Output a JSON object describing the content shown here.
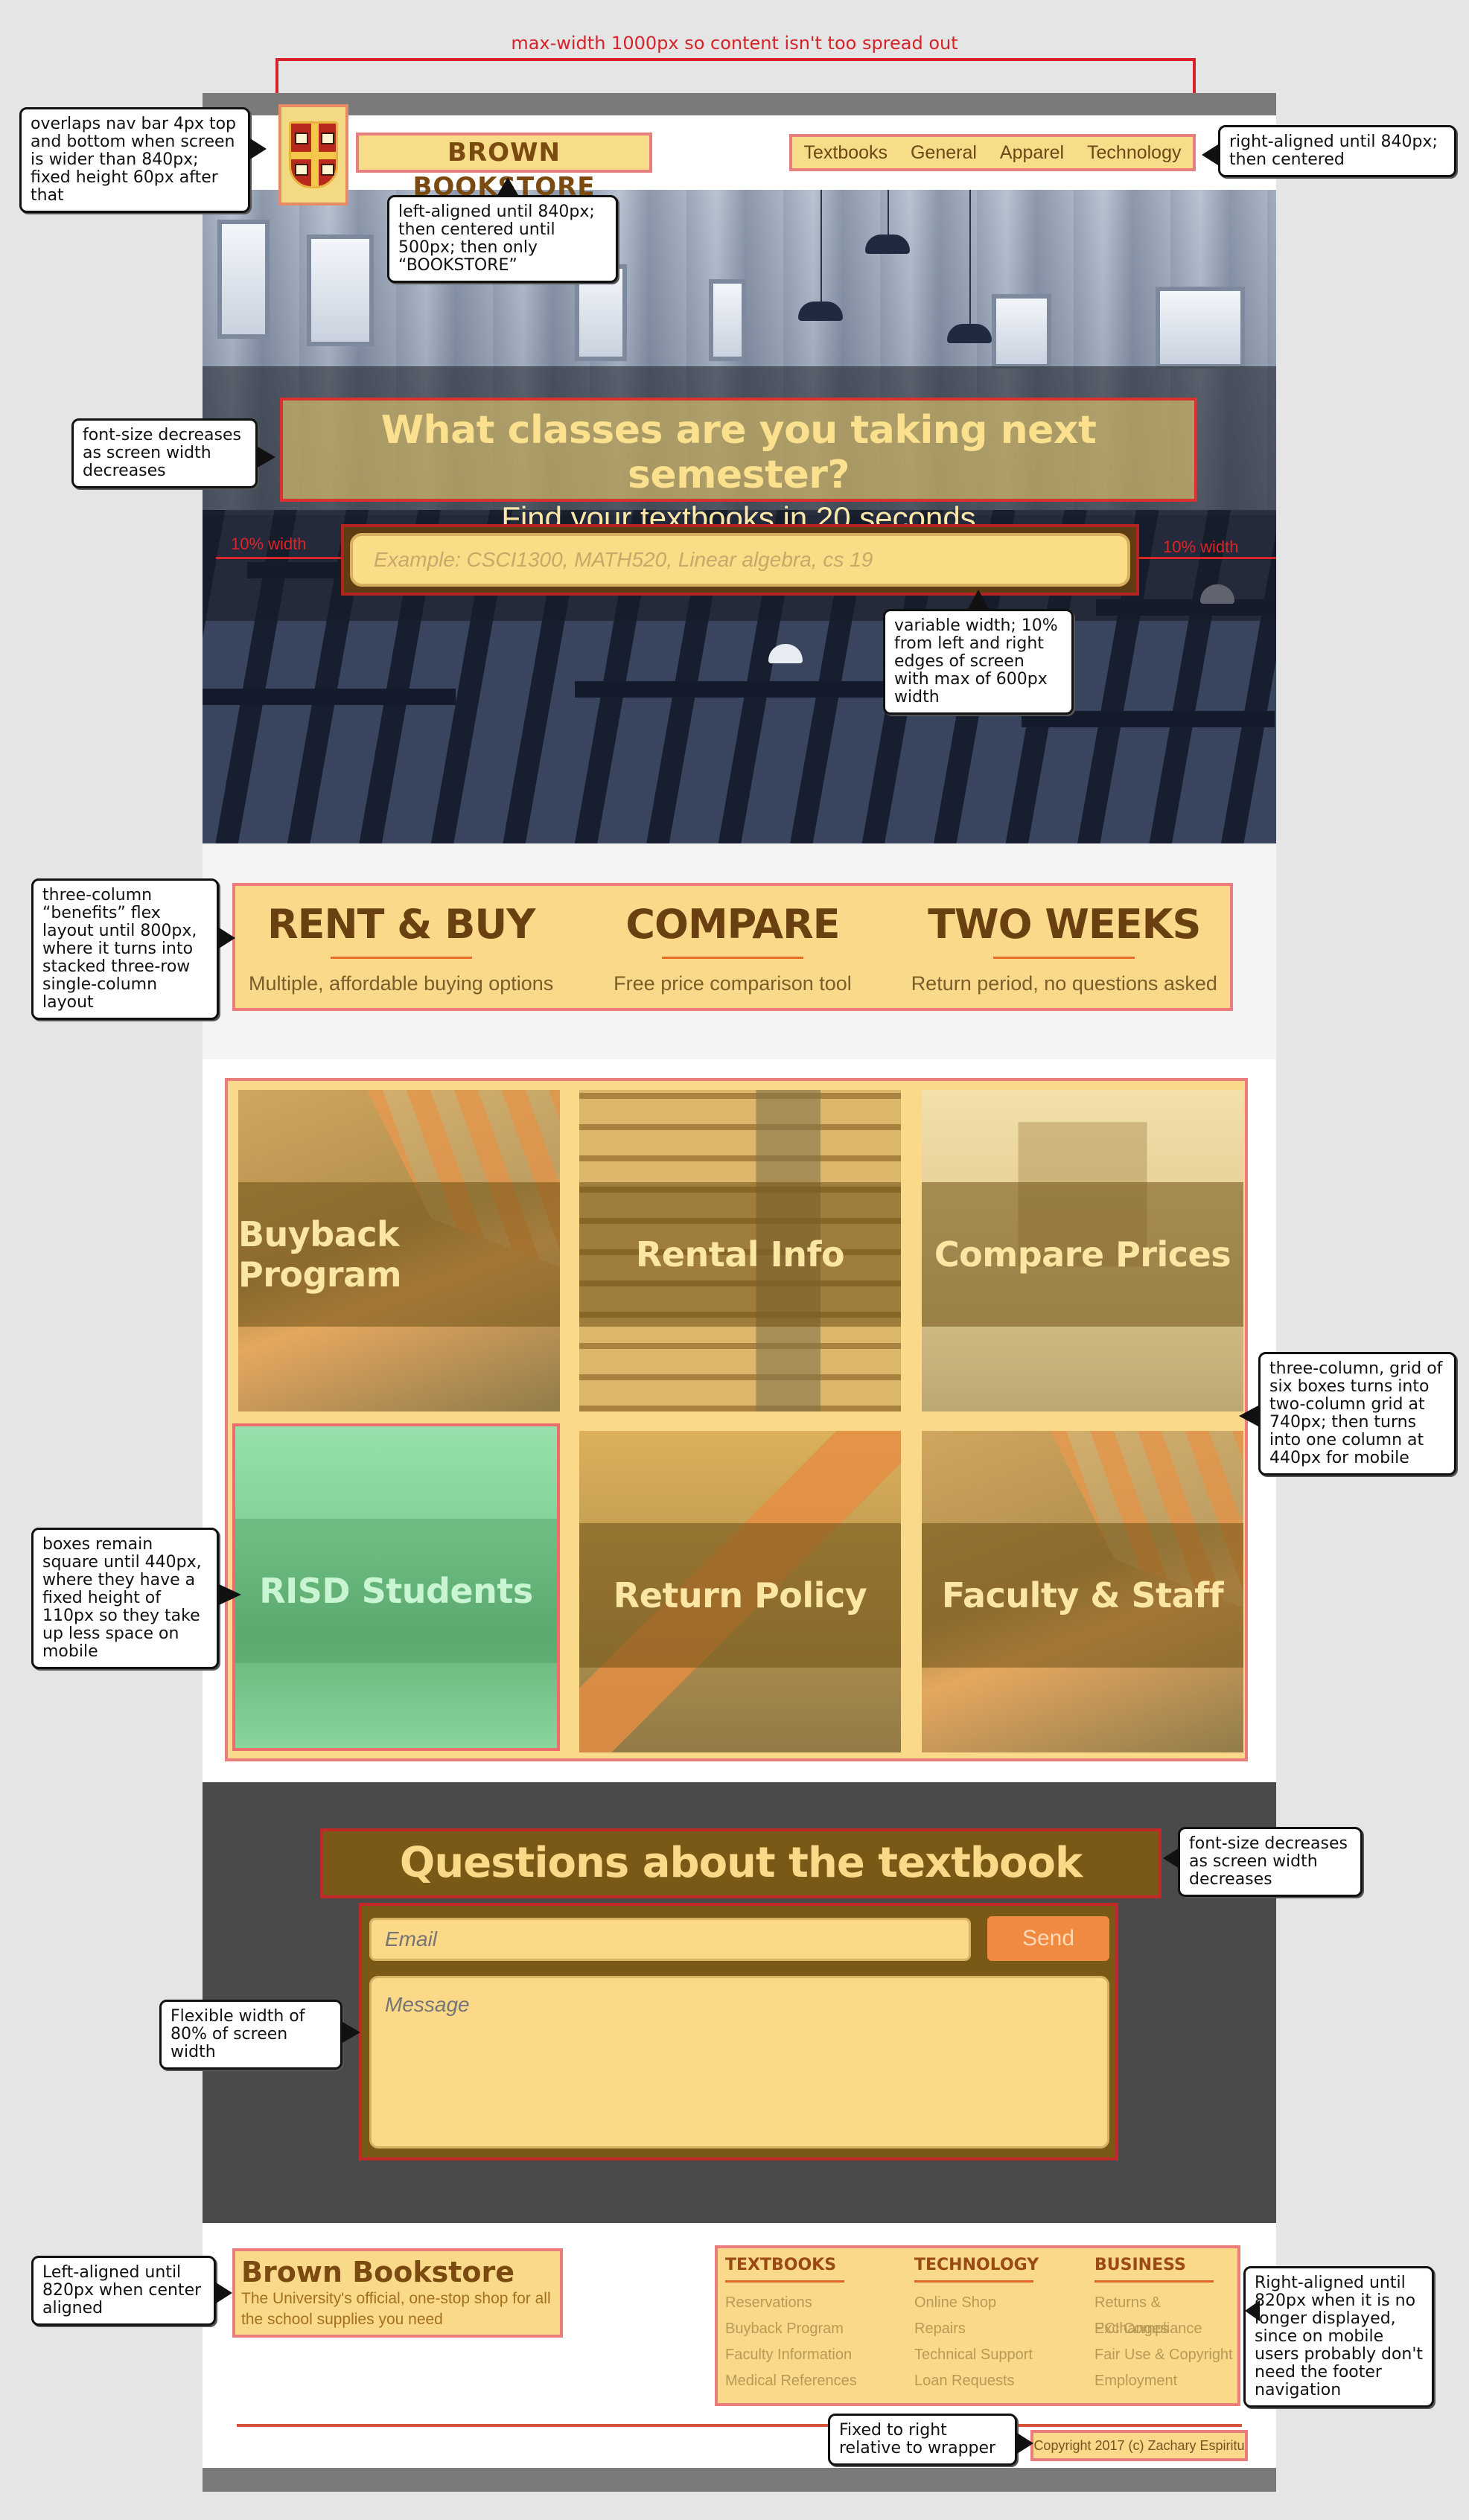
{
  "annotations": {
    "max_width": "max-width 1000px so content isn't too spread out",
    "logo": "overlaps nav bar 4px top and bottom when screen is wider than 840px; fixed height 60px after that",
    "brand": "left-aligned until 840px; then centered until 500px; then only “BOOKSTORE”",
    "nav": "right-aligned until 840px; then centered",
    "hero_font": "font-size decreases as screen width decreases",
    "search_left": "10% width",
    "search_right": "10% width",
    "search_width": "variable width; 10% from left and right edges of screen with max of 600px width",
    "benefits": "three-column “benefits” flex layout until 800px, where it turns into stacked three-row single-column layout",
    "grid": "three-column, grid of six boxes turns into two-column grid at 740px; then turns into one column at 440px for mobile",
    "tiles_square": "boxes remain square until 440px, where they have a fixed height of 110px so they take up less space on mobile",
    "contact_font": "font-size decreases as screen width decreases",
    "form_width": "Flexible width of 80% of screen width",
    "footer_brand": "Left-aligned until 820px when center aligned",
    "footer_nav": "Right-aligned until 820px when it is no longer displayed, since on mobile users probably don't need the footer navigation",
    "copyright": "Fixed to right relative to wrapper"
  },
  "nav": {
    "brand": "BROWN BOOKSTORE",
    "links": [
      "Textbooks",
      "General",
      "Apparel",
      "Technology"
    ]
  },
  "hero": {
    "title": "What classes are you taking next semester?",
    "subtitle": "Find your textbooks in 20 seconds",
    "search_placeholder": "Example: CSCI1300, MATH520, Linear algebra, cs 19"
  },
  "benefits": [
    {
      "title": "RENT & BUY",
      "text": "Multiple, affordable buying options"
    },
    {
      "title": "COMPARE",
      "text": "Free price comparison tool"
    },
    {
      "title": "TWO WEEKS",
      "text": "Return period, no questions asked"
    }
  ],
  "tiles": [
    "Buyback Program",
    "Rental Info",
    "Compare Prices",
    "RISD Students",
    "Return Policy",
    "Faculty & Staff"
  ],
  "contact": {
    "title": "Questions about the textbook program?",
    "email_placeholder": "Email",
    "send_label": "Send",
    "message_placeholder": "Message"
  },
  "footer": {
    "brand_title": "Brown Bookstore",
    "brand_text": "The University's official, one-stop shop for all the school supplies you need",
    "columns": [
      {
        "head": "TEXTBOOKS",
        "links": [
          "Reservations",
          "Buyback Program",
          "Faculty Information",
          "Medical References"
        ]
      },
      {
        "head": "TECHNOLOGY",
        "links": [
          "Online Shop",
          "Repairs",
          "Technical Support",
          "Loan Requests"
        ]
      },
      {
        "head": "BUSINESS",
        "links": [
          "Returns & Exchanges",
          "PCI Compliance",
          "Fair Use & Copyright",
          "Employment"
        ]
      }
    ],
    "copyright": "Copyright 2017 (c) Zachary Espiritu"
  },
  "colors": {
    "accent_yellow": "#fad98a",
    "annotation_border": "#ec7d7d",
    "annotation_red": "#d6232a",
    "brown_text": "#7a4a11"
  }
}
